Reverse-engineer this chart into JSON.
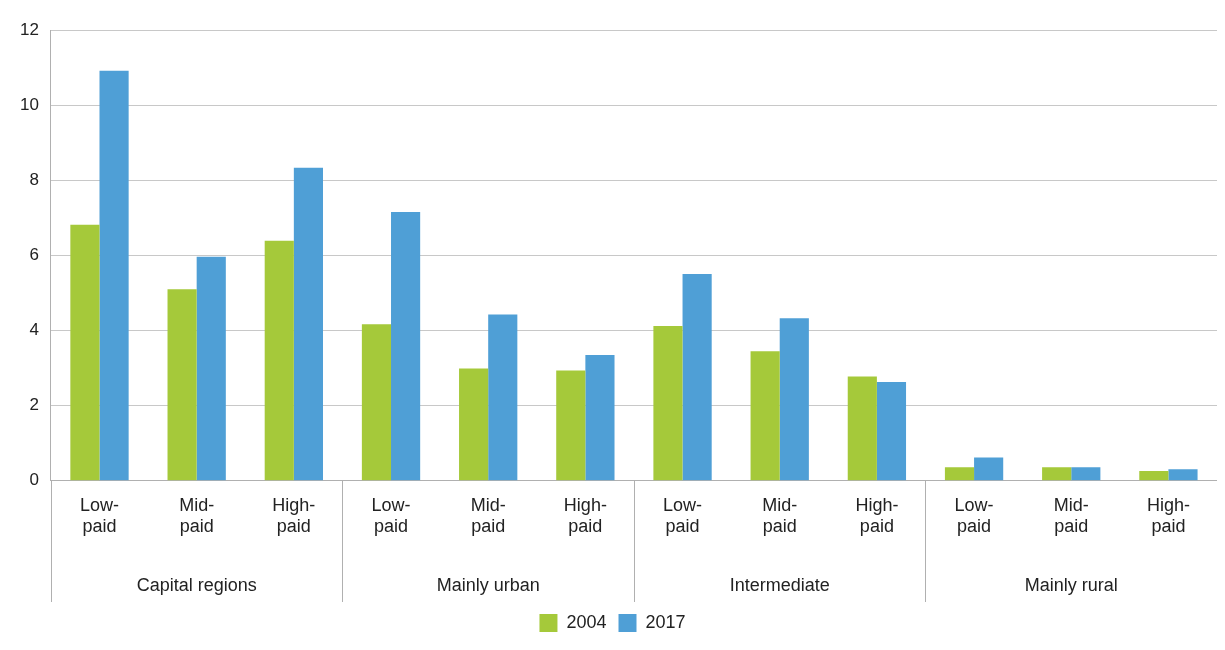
{
  "chart_data": {
    "type": "bar",
    "categories": [
      "Low-paid",
      "Mid-paid",
      "High-paid",
      "Low-paid",
      "Mid-paid",
      "High-paid",
      "Low-paid",
      "Mid-paid",
      "High-paid",
      "Low-paid",
      "Mid-paid",
      "High-paid"
    ],
    "series": [
      {
        "name": "2004",
        "color": "#a5c93a",
        "values": [
          6.82,
          5.1,
          6.39,
          4.17,
          2.99,
          2.94,
          4.12,
          3.45,
          2.78,
          0.36,
          0.36,
          0.26
        ]
      },
      {
        "name": "2017",
        "color": "#4f9fd6",
        "values": [
          10.92,
          5.97,
          8.34,
          7.16,
          4.43,
          3.35,
          5.51,
          4.33,
          2.63,
          0.62,
          0.36,
          0.31
        ]
      }
    ],
    "annotations": [
      "Capital regions",
      "Mainly urban",
      "Intermediate",
      "Mainly rural"
    ],
    "ylim": [
      0,
      12
    ],
    "yticks": [
      0,
      2,
      4,
      6,
      8,
      10,
      12
    ],
    "grid": "y",
    "legend": "bottom"
  }
}
